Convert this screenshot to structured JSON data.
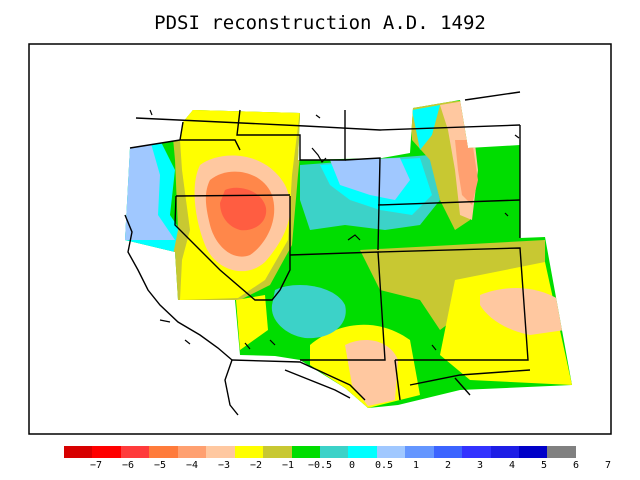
{
  "title": "PDSI reconstruction A.D. 1492",
  "legend": {
    "colors": [
      "#d70000",
      "#ff0000",
      "#ff3b3b",
      "#ff7b3b",
      "#ffa070",
      "#ffc8a0",
      "#ffff00",
      "#c8c832",
      "#00dd00",
      "#3cd2c8",
      "#00ffff",
      "#a0c8ff",
      "#6496ff",
      "#3c64ff",
      "#3232ff",
      "#1e1ee6",
      "#0000c8",
      "#808080"
    ],
    "ticks": [
      "−7",
      "−6",
      "−5",
      "−4",
      "−3",
      "−2",
      "−1",
      "−0.5",
      "0",
      "0.5",
      "1",
      "2",
      "3",
      "4",
      "5",
      "6",
      "7"
    ]
  }
}
